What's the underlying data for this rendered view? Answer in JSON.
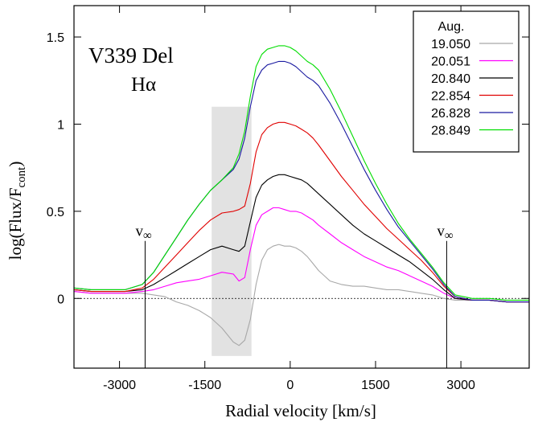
{
  "chart_data": {
    "type": "line",
    "annotations": {
      "object": "V339 Del",
      "line": "Hα",
      "vinf_label": "v",
      "vinf_sub": "∞",
      "vinf_left": -2550,
      "vinf_right": 2750,
      "shade_range": [
        -1380,
        -680
      ],
      "shade_y": [
        -0.33,
        1.1
      ],
      "zero_line": 0
    },
    "xlabel": "Radial velocity [km/s]",
    "ylabel_main": "log(Flux/F",
    "ylabel_sub": "cont",
    "ylabel_close": ")",
    "xlim": [
      -3800,
      4200
    ],
    "ylim": [
      -0.4,
      1.68
    ],
    "xticks": [
      -3000,
      -1500,
      0,
      1500,
      3000
    ],
    "xtick_labels": [
      "-3000",
      "-1500",
      "0",
      "1500",
      "3000"
    ],
    "yticks": [
      0,
      0.5,
      1,
      1.5
    ],
    "ytick_labels": [
      "0",
      "0.5",
      "1",
      "1.5"
    ],
    "legend": {
      "title": "Aug.",
      "placement": "top-right"
    },
    "series": [
      {
        "name": "19.050",
        "color": "#a8a8a8",
        "x": [
          -3800,
          -3500,
          -3200,
          -2900,
          -2600,
          -2400,
          -2200,
          -2000,
          -1800,
          -1600,
          -1400,
          -1200,
          -1000,
          -900,
          -800,
          -700,
          -600,
          -500,
          -400,
          -300,
          -200,
          -100,
          0,
          100,
          200,
          300,
          400,
          500,
          700,
          900,
          1100,
          1300,
          1500,
          1700,
          1900,
          2100,
          2300,
          2500,
          2700,
          2900,
          3200,
          3500,
          3800,
          4200
        ],
        "y": [
          0.04,
          0.03,
          0.03,
          0.03,
          0.03,
          0.02,
          0.01,
          -0.02,
          -0.04,
          -0.07,
          -0.11,
          -0.17,
          -0.25,
          -0.27,
          -0.24,
          -0.12,
          0.08,
          0.22,
          0.28,
          0.3,
          0.31,
          0.3,
          0.3,
          0.29,
          0.27,
          0.24,
          0.2,
          0.16,
          0.1,
          0.08,
          0.07,
          0.07,
          0.06,
          0.05,
          0.05,
          0.04,
          0.03,
          0.02,
          0.0,
          -0.01,
          -0.01,
          -0.01,
          -0.02,
          -0.02
        ]
      },
      {
        "name": "20.051",
        "color": "#ff00ff",
        "x": [
          -3800,
          -3500,
          -3200,
          -2900,
          -2600,
          -2400,
          -2200,
          -2000,
          -1800,
          -1600,
          -1400,
          -1200,
          -1000,
          -900,
          -800,
          -700,
          -600,
          -500,
          -400,
          -300,
          -200,
          -100,
          0,
          100,
          200,
          300,
          400,
          500,
          700,
          900,
          1100,
          1300,
          1500,
          1700,
          1900,
          2100,
          2300,
          2500,
          2700,
          2900,
          3200,
          3500,
          3800,
          4200
        ],
        "y": [
          0.04,
          0.03,
          0.03,
          0.03,
          0.04,
          0.05,
          0.07,
          0.09,
          0.1,
          0.11,
          0.13,
          0.15,
          0.14,
          0.1,
          0.12,
          0.28,
          0.42,
          0.48,
          0.5,
          0.52,
          0.52,
          0.51,
          0.5,
          0.5,
          0.49,
          0.47,
          0.45,
          0.42,
          0.37,
          0.32,
          0.28,
          0.24,
          0.21,
          0.18,
          0.16,
          0.13,
          0.1,
          0.07,
          0.03,
          0.0,
          -0.01,
          -0.01,
          -0.02,
          -0.02
        ]
      },
      {
        "name": "20.840",
        "color": "#000000",
        "x": [
          -3800,
          -3500,
          -3200,
          -2900,
          -2600,
          -2400,
          -2200,
          -2000,
          -1800,
          -1600,
          -1400,
          -1200,
          -1000,
          -900,
          -800,
          -700,
          -600,
          -500,
          -400,
          -300,
          -200,
          -100,
          0,
          100,
          200,
          300,
          400,
          500,
          700,
          900,
          1100,
          1300,
          1500,
          1700,
          1900,
          2100,
          2300,
          2500,
          2700,
          2900,
          3200,
          3500,
          3800,
          4200
        ],
        "y": [
          0.05,
          0.04,
          0.04,
          0.04,
          0.05,
          0.08,
          0.12,
          0.16,
          0.2,
          0.24,
          0.28,
          0.3,
          0.28,
          0.27,
          0.3,
          0.44,
          0.58,
          0.65,
          0.68,
          0.7,
          0.71,
          0.71,
          0.7,
          0.69,
          0.68,
          0.66,
          0.63,
          0.6,
          0.54,
          0.48,
          0.42,
          0.37,
          0.33,
          0.29,
          0.25,
          0.21,
          0.16,
          0.11,
          0.05,
          0.0,
          -0.01,
          -0.01,
          -0.02,
          -0.02
        ]
      },
      {
        "name": "22.854",
        "color": "#e00000",
        "x": [
          -3800,
          -3500,
          -3200,
          -2900,
          -2600,
          -2400,
          -2200,
          -2000,
          -1800,
          -1600,
          -1400,
          -1200,
          -1000,
          -900,
          -800,
          -700,
          -600,
          -500,
          -400,
          -300,
          -200,
          -100,
          0,
          100,
          200,
          300,
          400,
          500,
          700,
          900,
          1100,
          1300,
          1500,
          1700,
          1900,
          2100,
          2300,
          2500,
          2700,
          2900,
          3200,
          3500,
          3800,
          4200
        ],
        "y": [
          0.05,
          0.04,
          0.04,
          0.04,
          0.06,
          0.11,
          0.18,
          0.25,
          0.32,
          0.39,
          0.45,
          0.49,
          0.5,
          0.51,
          0.53,
          0.66,
          0.84,
          0.94,
          0.98,
          1.0,
          1.01,
          1.01,
          1.0,
          0.99,
          0.97,
          0.95,
          0.92,
          0.88,
          0.79,
          0.7,
          0.62,
          0.54,
          0.47,
          0.4,
          0.34,
          0.28,
          0.22,
          0.15,
          0.07,
          0.01,
          -0.01,
          -0.01,
          -0.02,
          -0.02
        ]
      },
      {
        "name": "26.828",
        "color": "#1a1aa0",
        "x": [
          -3800,
          -3500,
          -3200,
          -2900,
          -2600,
          -2400,
          -2200,
          -2000,
          -1800,
          -1600,
          -1400,
          -1200,
          -1000,
          -900,
          -800,
          -700,
          -600,
          -500,
          -400,
          -300,
          -200,
          -100,
          0,
          100,
          200,
          300,
          400,
          500,
          700,
          900,
          1100,
          1300,
          1500,
          1700,
          1900,
          2100,
          2300,
          2500,
          2700,
          2900,
          3200,
          3500,
          3800,
          4200
        ],
        "y": [
          0.06,
          0.05,
          0.05,
          0.05,
          0.08,
          0.15,
          0.25,
          0.35,
          0.45,
          0.54,
          0.62,
          0.68,
          0.74,
          0.8,
          0.92,
          1.1,
          1.25,
          1.31,
          1.34,
          1.35,
          1.36,
          1.36,
          1.35,
          1.33,
          1.3,
          1.27,
          1.25,
          1.22,
          1.12,
          1.0,
          0.87,
          0.74,
          0.62,
          0.51,
          0.41,
          0.33,
          0.25,
          0.17,
          0.08,
          0.01,
          -0.01,
          -0.01,
          -0.02,
          -0.02
        ]
      },
      {
        "name": "28.849",
        "color": "#00dd00",
        "x": [
          -3800,
          -3500,
          -3200,
          -2900,
          -2600,
          -2400,
          -2200,
          -2000,
          -1800,
          -1600,
          -1400,
          -1200,
          -1000,
          -900,
          -800,
          -700,
          -600,
          -500,
          -400,
          -300,
          -200,
          -100,
          0,
          100,
          200,
          300,
          400,
          500,
          700,
          900,
          1100,
          1300,
          1500,
          1700,
          1900,
          2100,
          2300,
          2500,
          2700,
          2900,
          3200,
          3500,
          3800,
          4200
        ],
        "y": [
          0.06,
          0.05,
          0.05,
          0.05,
          0.08,
          0.15,
          0.25,
          0.35,
          0.45,
          0.54,
          0.62,
          0.68,
          0.75,
          0.83,
          0.96,
          1.16,
          1.33,
          1.4,
          1.43,
          1.44,
          1.45,
          1.45,
          1.44,
          1.42,
          1.39,
          1.36,
          1.34,
          1.31,
          1.2,
          1.07,
          0.93,
          0.79,
          0.66,
          0.54,
          0.43,
          0.34,
          0.26,
          0.18,
          0.09,
          0.02,
          0.0,
          0.0,
          -0.01,
          -0.01
        ]
      }
    ]
  }
}
